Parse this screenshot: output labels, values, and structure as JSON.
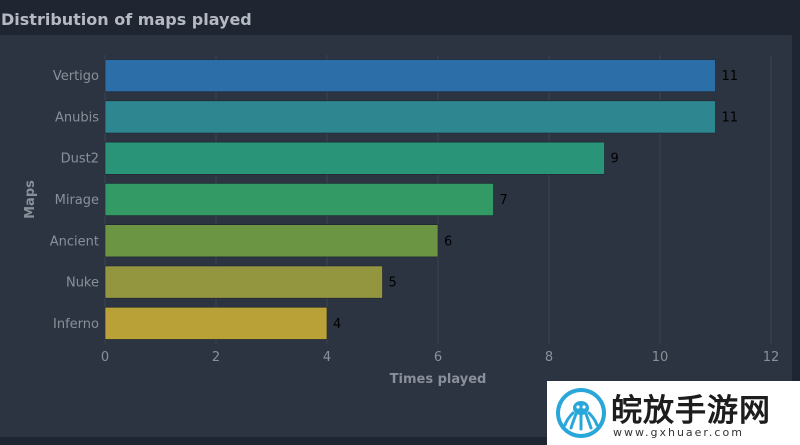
{
  "title": "Distribution of maps played",
  "chart_data": {
    "type": "bar",
    "orientation": "horizontal",
    "categories": [
      "Vertigo",
      "Anubis",
      "Dust2",
      "Mirage",
      "Ancient",
      "Nuke",
      "Inferno"
    ],
    "values": [
      11,
      11,
      9,
      7,
      6,
      5,
      4
    ],
    "xlabel": "Times played",
    "ylabel": "Maps",
    "xlim": [
      0,
      12
    ],
    "xticks": [
      0,
      2,
      4,
      6,
      8,
      10,
      12
    ],
    "grid": true,
    "data_labels": true,
    "colors": [
      "#2b6ea8",
      "#2e8790",
      "#2a9478",
      "#339a65",
      "#6b9443",
      "#94963f",
      "#b9a138"
    ]
  },
  "watermark": {
    "text": "皖放手游网",
    "url": "www.gxhuaer.com",
    "icon": "octopus-logo-icon"
  }
}
